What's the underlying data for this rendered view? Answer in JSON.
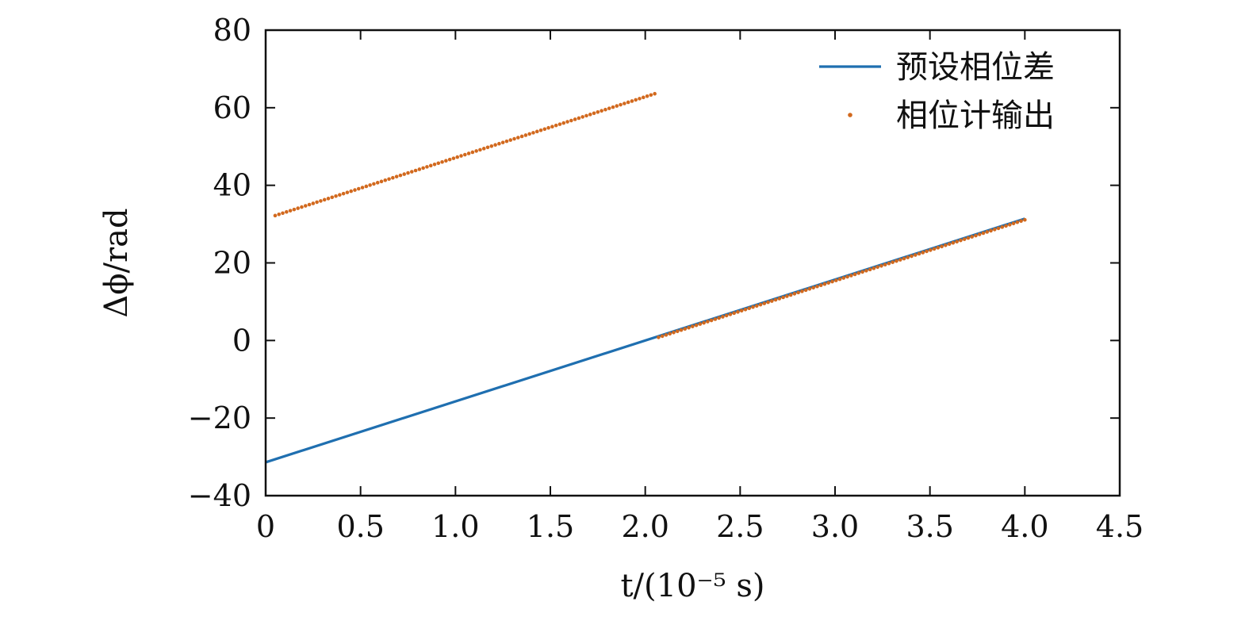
{
  "chart_data": {
    "type": "line",
    "title": "",
    "xlabel": "t/(10⁻⁵ s)",
    "ylabel": "Δϕ/rad",
    "xlim": [
      0,
      4.5
    ],
    "ylim": [
      -40,
      80
    ],
    "xticks": [
      "0",
      "0.5",
      "1.0",
      "1.5",
      "2.0",
      "2.5",
      "3.0",
      "3.5",
      "4.0",
      "4.5"
    ],
    "yticks": [
      "−40",
      "−20",
      "0",
      "20",
      "40",
      "60",
      "80"
    ],
    "grid": false,
    "legend_position": "top-right",
    "series": [
      {
        "name": "预设相位差",
        "style": "solid-line",
        "color": "#1f6fb0",
        "points": [
          [
            0,
            -31.4
          ],
          [
            4.0,
            31.4
          ]
        ]
      },
      {
        "name": "相位计输出",
        "style": "dotted",
        "color": "#d2691e",
        "segments": [
          [
            [
              0.05,
              32.2
            ],
            [
              2.05,
              63.6
            ]
          ],
          [
            [
              2.07,
              0.8
            ],
            [
              4.0,
              31.1
            ]
          ]
        ]
      }
    ]
  }
}
